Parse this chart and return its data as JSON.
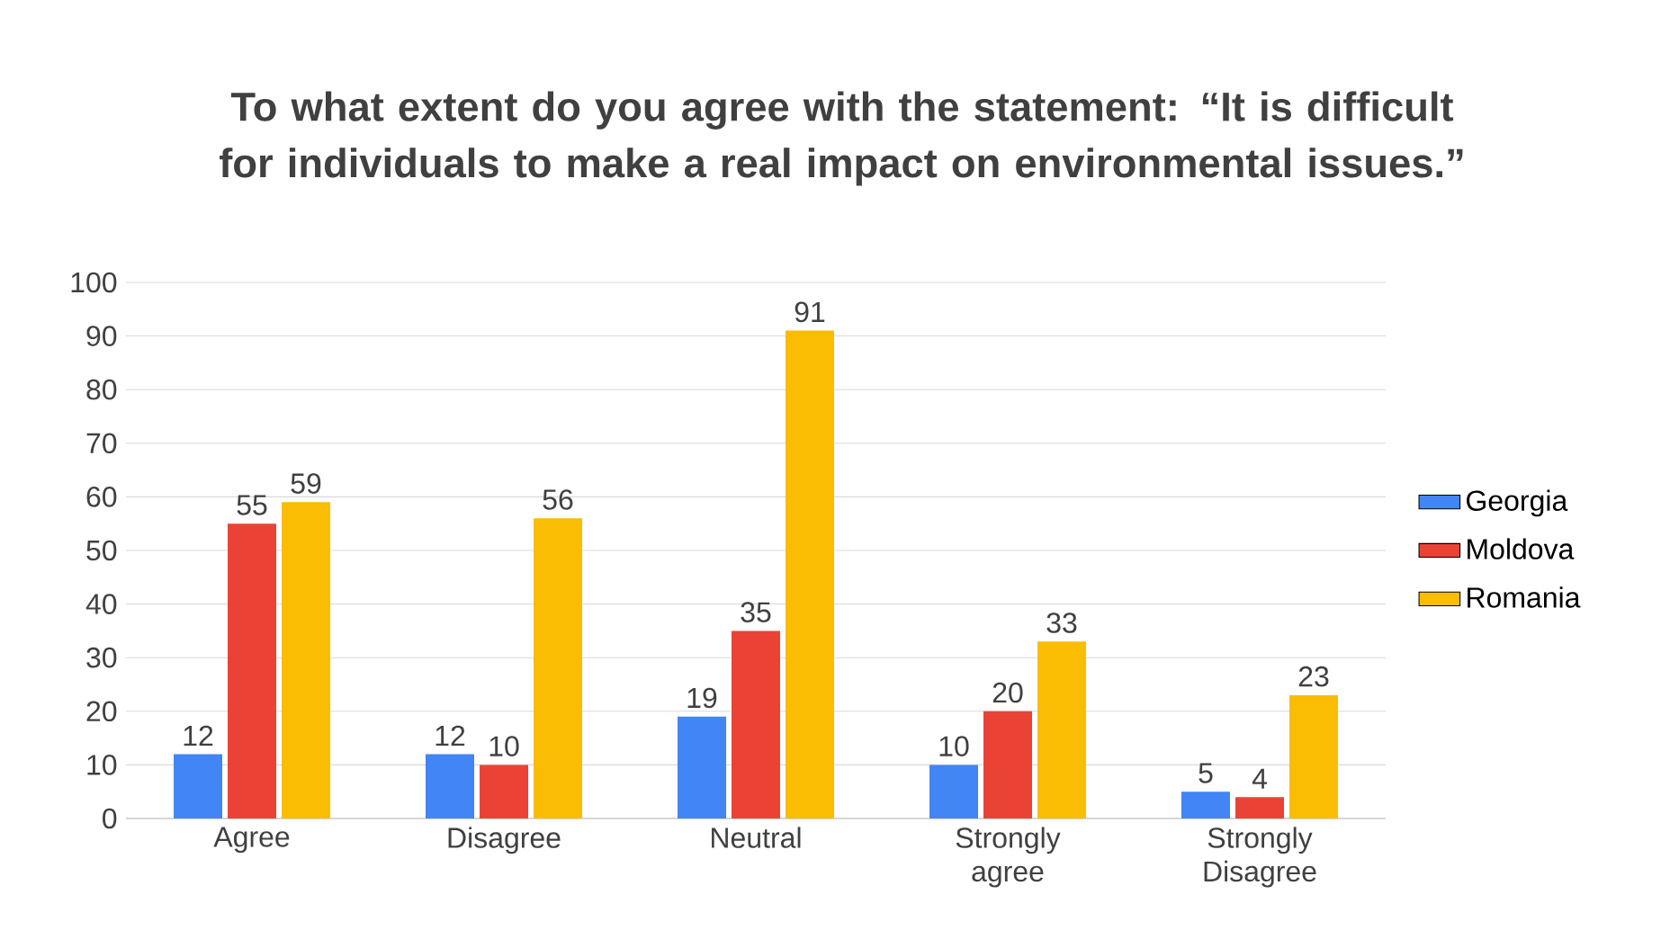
{
  "chart_data": {
    "type": "bar",
    "title": "To what extent do you agree with the statement: “It is difficult for individuals to make a real impact on environmental issues.”",
    "categories": [
      "Agree",
      "Disagree",
      "Neutral",
      "Strongly agree",
      "Strongly Disagree"
    ],
    "series": [
      {
        "name": "Georgia",
        "color": "#4285f4",
        "values": [
          12,
          12,
          19,
          10,
          5
        ]
      },
      {
        "name": "Moldova",
        "color": "#ea4335",
        "values": [
          55,
          10,
          35,
          20,
          4
        ]
      },
      {
        "name": "Romania",
        "color": "#fbbc04",
        "values": [
          59,
          56,
          91,
          33,
          23
        ]
      }
    ],
    "ylim": [
      0,
      100
    ],
    "yticks": [
      0,
      10,
      20,
      30,
      40,
      50,
      60,
      70,
      80,
      90,
      100
    ],
    "grid": "y",
    "legend": "right",
    "data_labels": true
  }
}
